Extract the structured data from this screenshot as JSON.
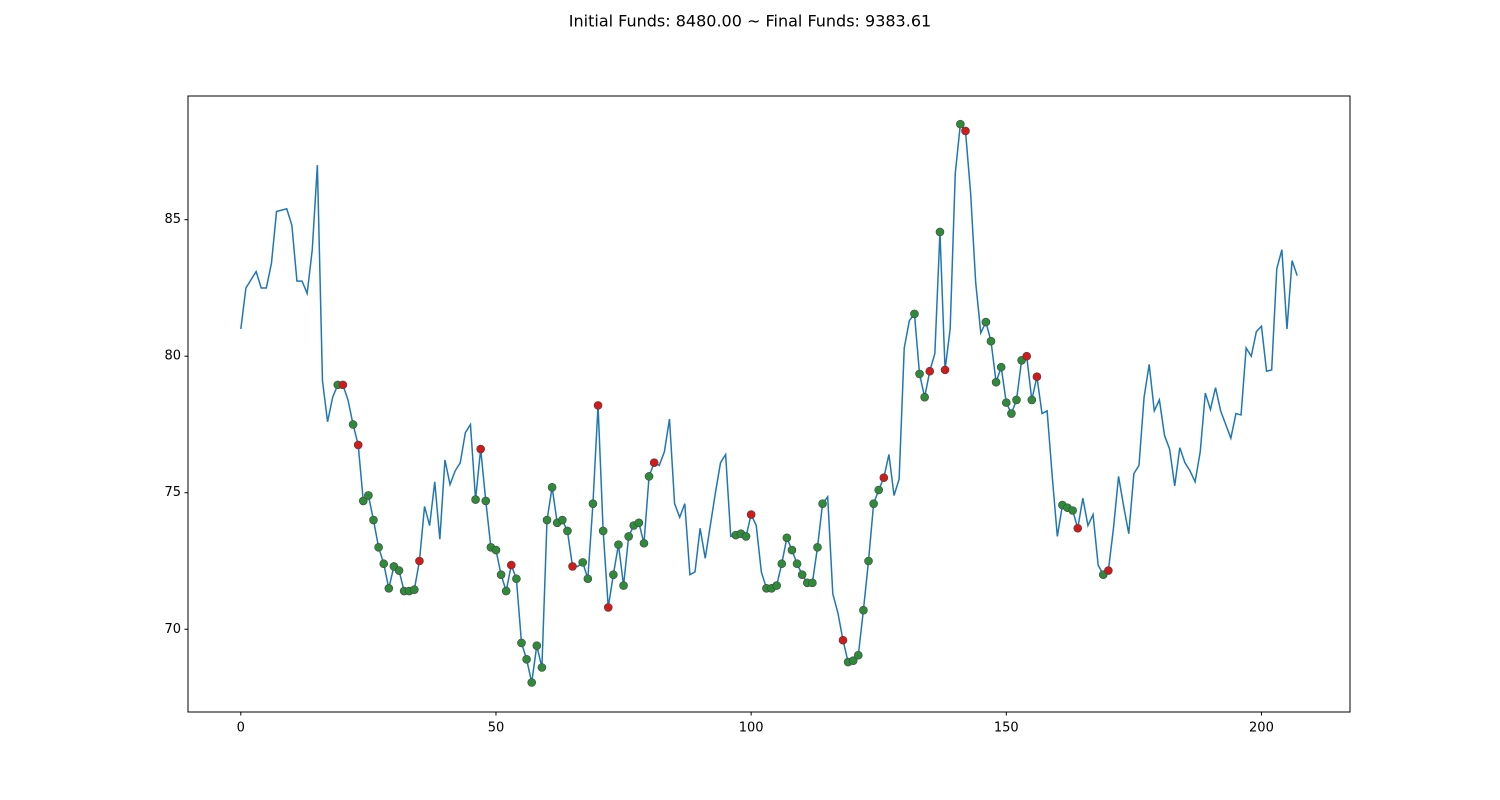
{
  "chart_data": {
    "type": "line",
    "title": "Initial Funds: 8480.00 ~ Final Funds: 9383.61",
    "xlim": [
      -10.35,
      217.35
    ],
    "ylim": [
      66.97,
      89.53
    ],
    "xticks": [
      0,
      50,
      100,
      150,
      200
    ],
    "yticks": [
      70,
      75,
      80,
      85
    ],
    "series": [
      {
        "type": "line",
        "color": "#1f77b4",
        "x": [
          0,
          1,
          2,
          3,
          4,
          5,
          6,
          7,
          8,
          9,
          10,
          11,
          12,
          13,
          14,
          15,
          16,
          17,
          18,
          19,
          20,
          21,
          22,
          23,
          24,
          25,
          26,
          27,
          28,
          29,
          30,
          31,
          32,
          33,
          34,
          35,
          36,
          37,
          38,
          39,
          40,
          41,
          42,
          43,
          44,
          45,
          46,
          47,
          48,
          49,
          50,
          51,
          52,
          53,
          54,
          55,
          56,
          57,
          58,
          59,
          60,
          61,
          62,
          63,
          64,
          65,
          66,
          67,
          68,
          69,
          70,
          71,
          72,
          73,
          74,
          75,
          76,
          77,
          78,
          79,
          80,
          81,
          82,
          83,
          84,
          85,
          86,
          87,
          88,
          89,
          90,
          91,
          92,
          93,
          94,
          95,
          96,
          97,
          98,
          99,
          100,
          101,
          102,
          103,
          104,
          105,
          106,
          107,
          108,
          109,
          110,
          111,
          112,
          113,
          114,
          115,
          116,
          117,
          118,
          119,
          120,
          121,
          122,
          123,
          124,
          125,
          126,
          127,
          128,
          129,
          130,
          131,
          132,
          133,
          134,
          135,
          136,
          137,
          138,
          139,
          140,
          141,
          142,
          143,
          144,
          145,
          146,
          147,
          148,
          149,
          150,
          151,
          152,
          153,
          154,
          155,
          156,
          157,
          158,
          159,
          160,
          161,
          162,
          163,
          164,
          165,
          166,
          167,
          168,
          169,
          170,
          171,
          172,
          173,
          174,
          175,
          176,
          177,
          178,
          179,
          180,
          181,
          182,
          183,
          184,
          185,
          186,
          187,
          188,
          189,
          190,
          191,
          192,
          193,
          194,
          195,
          196,
          197,
          198,
          199,
          200,
          201,
          202,
          203,
          204,
          205,
          206,
          207
        ],
        "values": [
          81.0,
          82.5,
          82.8,
          83.1,
          82.5,
          82.5,
          83.4,
          85.3,
          85.35,
          85.4,
          84.8,
          82.75,
          82.75,
          82.3,
          83.9,
          87.0,
          79.1,
          77.6,
          78.5,
          78.95,
          78.95,
          78.4,
          77.5,
          76.75,
          74.7,
          74.9,
          74.0,
          73.0,
          72.4,
          71.5,
          72.3,
          72.15,
          71.4,
          71.4,
          71.45,
          72.5,
          74.5,
          73.8,
          75.4,
          73.3,
          76.2,
          75.3,
          75.8,
          76.1,
          77.2,
          77.5,
          74.75,
          76.6,
          74.7,
          73.0,
          72.9,
          72.0,
          71.4,
          72.35,
          71.85,
          69.5,
          68.9,
          68.05,
          69.4,
          68.6,
          74.0,
          75.2,
          73.9,
          74.0,
          73.6,
          72.3,
          72.3,
          72.45,
          71.85,
          74.6,
          78.2,
          73.6,
          70.8,
          72.0,
          73.1,
          71.6,
          73.4,
          73.8,
          73.9,
          73.15,
          75.6,
          76.1,
          76.0,
          76.5,
          77.7,
          74.6,
          74.1,
          74.6,
          72.0,
          72.1,
          73.7,
          72.6,
          73.8,
          75.0,
          76.1,
          76.4,
          73.4,
          73.45,
          73.5,
          73.4,
          74.2,
          73.8,
          72.1,
          71.5,
          71.5,
          71.6,
          72.4,
          73.35,
          72.9,
          72.4,
          72.0,
          71.7,
          71.7,
          73.0,
          74.6,
          74.85,
          71.3,
          70.6,
          69.6,
          68.8,
          68.85,
          69.05,
          70.7,
          72.5,
          74.6,
          75.1,
          75.55,
          76.4,
          74.9,
          75.5,
          80.3,
          81.3,
          81.55,
          79.35,
          78.5,
          79.45,
          80.1,
          84.55,
          79.5,
          81.0,
          86.7,
          88.5,
          88.25,
          86.0,
          82.7,
          80.85,
          81.25,
          80.55,
          79.05,
          79.6,
          78.3,
          77.9,
          78.4,
          79.85,
          80.0,
          78.4,
          79.25,
          77.9,
          78.0,
          75.6,
          73.4,
          74.55,
          74.45,
          74.35,
          73.7,
          74.8,
          73.8,
          74.2,
          72.35,
          72.0,
          72.15,
          73.7,
          75.6,
          74.5,
          73.5,
          75.7,
          76.0,
          78.5,
          79.7,
          78.0,
          78.4,
          77.1,
          76.6,
          75.25,
          76.65,
          76.1,
          75.8,
          75.4,
          76.5,
          78.65,
          78.05,
          78.85,
          78.0,
          77.5,
          77.0,
          77.9,
          77.85,
          80.3,
          80.0,
          80.9,
          81.1,
          79.45,
          79.5,
          83.2,
          83.9,
          81.0,
          83.5,
          82.95
        ]
      },
      {
        "type": "scatter",
        "color": "#2e8b3a",
        "x": [
          19,
          22,
          24,
          25,
          26,
          27,
          28,
          29,
          30,
          31,
          32,
          33,
          34,
          46,
          48,
          49,
          50,
          51,
          52,
          54,
          55,
          56,
          57,
          58,
          59,
          60,
          61,
          62,
          63,
          64,
          67,
          68,
          69,
          71,
          73,
          74,
          75,
          76,
          77,
          78,
          79,
          80,
          97,
          98,
          99,
          103,
          104,
          105,
          106,
          107,
          108,
          109,
          110,
          111,
          112,
          113,
          114,
          119,
          120,
          121,
          122,
          123,
          124,
          125,
          132,
          133,
          134,
          137,
          141,
          146,
          147,
          148,
          149,
          150,
          151,
          152,
          153,
          155,
          161,
          162,
          163,
          169
        ],
        "values": [
          78.95,
          77.5,
          74.7,
          74.9,
          74.0,
          73.0,
          72.4,
          71.5,
          72.3,
          72.15,
          71.4,
          71.4,
          71.45,
          74.75,
          74.7,
          73.0,
          72.9,
          72.0,
          71.4,
          71.85,
          69.5,
          68.9,
          68.05,
          69.4,
          68.6,
          74.0,
          75.2,
          73.9,
          74.0,
          73.6,
          72.45,
          71.85,
          74.6,
          73.6,
          72.0,
          73.1,
          71.6,
          73.4,
          73.8,
          73.9,
          73.15,
          75.6,
          73.45,
          73.5,
          73.4,
          71.5,
          71.5,
          71.6,
          72.4,
          73.35,
          72.9,
          72.4,
          72.0,
          71.7,
          71.7,
          73.0,
          74.6,
          68.8,
          68.85,
          69.05,
          70.7,
          72.5,
          74.6,
          75.1,
          81.55,
          79.35,
          78.5,
          84.55,
          88.5,
          81.25,
          80.55,
          79.05,
          79.6,
          78.3,
          77.9,
          78.4,
          79.85,
          78.4,
          74.55,
          74.45,
          74.35,
          72.0
        ]
      },
      {
        "type": "scatter",
        "color": "#d11a1a",
        "x": [
          20,
          23,
          35,
          47,
          53,
          65,
          70,
          72,
          81,
          100,
          118,
          126,
          135,
          138,
          142,
          154,
          156,
          164,
          170
        ],
        "values": [
          78.95,
          76.75,
          72.5,
          76.6,
          72.35,
          72.3,
          78.2,
          70.8,
          76.1,
          74.2,
          69.6,
          75.55,
          79.45,
          79.5,
          88.25,
          80.0,
          79.25,
          73.7,
          72.15
        ]
      }
    ]
  }
}
